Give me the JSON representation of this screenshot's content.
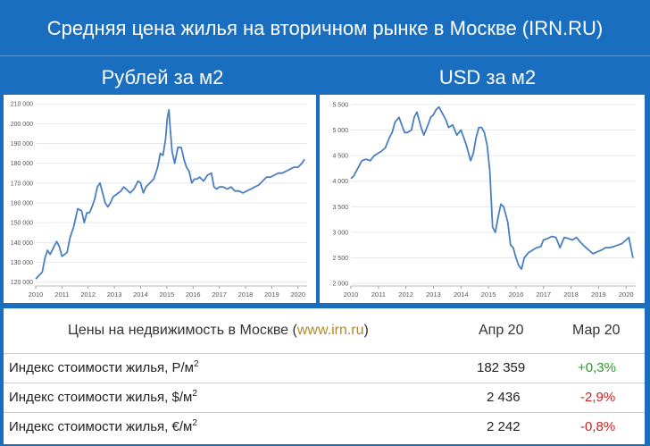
{
  "header": {
    "title": "Средняя цена жилья на вторичном рынке в Москве (IRN.RU)",
    "left_subtitle": "Рублей за м2",
    "right_subtitle": "USD за м2"
  },
  "chart_data": [
    {
      "type": "line",
      "title": "Рублей за м2",
      "xlim": [
        2010,
        2020.35
      ],
      "ylim": [
        118000,
        211000
      ],
      "x_ticks": [
        "2010",
        "2011",
        "2012",
        "2013",
        "2014",
        "2015",
        "2016",
        "2017",
        "2018",
        "2019",
        "2020"
      ],
      "y_ticks": [
        "120 000",
        "130 000",
        "140 000",
        "150 000",
        "160 000",
        "170 000",
        "180 000",
        "190 000",
        "200 000",
        "210 000"
      ],
      "color": "#4a7fc1",
      "series": [
        {
          "x": [
            2010.0,
            2010.1,
            2010.25,
            2010.35,
            2010.45,
            2010.55,
            2010.7,
            2010.8,
            2010.9,
            2011.0,
            2011.1,
            2011.2,
            2011.3,
            2011.45,
            2011.6,
            2011.75,
            2011.85,
            2011.95,
            2012.05,
            2012.15,
            2012.25,
            2012.35,
            2012.45,
            2012.55,
            2012.65,
            2012.75,
            2012.85,
            2012.95,
            2013.05,
            2013.15,
            2013.25,
            2013.35,
            2013.45,
            2013.6,
            2013.75,
            2013.9,
            2014.0,
            2014.1,
            2014.2,
            2014.35,
            2014.5,
            2014.65,
            2014.75,
            2014.85,
            2014.95,
            2015.02,
            2015.08,
            2015.12,
            2015.2,
            2015.3,
            2015.42,
            2015.55,
            2015.65,
            2015.75,
            2015.85,
            2015.95,
            2016.05,
            2016.15,
            2016.25,
            2016.4,
            2016.55,
            2016.7,
            2016.8,
            2016.9,
            2017.0,
            2017.15,
            2017.3,
            2017.45,
            2017.6,
            2017.75,
            2017.9,
            2018.05,
            2018.2,
            2018.35,
            2018.5,
            2018.65,
            2018.8,
            2018.95,
            2019.1,
            2019.25,
            2019.4,
            2019.55,
            2019.7,
            2019.85,
            2020.0,
            2020.15,
            2020.25
          ],
          "y": [
            121500,
            123000,
            125000,
            132000,
            136000,
            134000,
            138000,
            140500,
            138000,
            133000,
            134000,
            135000,
            142000,
            148000,
            157000,
            156000,
            150000,
            155000,
            155000,
            158000,
            162000,
            168000,
            170000,
            165000,
            160000,
            158000,
            160000,
            163000,
            164000,
            165000,
            166000,
            168000,
            167000,
            165000,
            167000,
            171000,
            170000,
            165000,
            168000,
            170000,
            172000,
            178000,
            185000,
            184000,
            192000,
            203000,
            207000,
            199000,
            186000,
            180000,
            188000,
            188000,
            182000,
            178000,
            176000,
            170000,
            172000,
            172000,
            173000,
            171000,
            174000,
            175000,
            168000,
            167000,
            168000,
            168000,
            167000,
            168000,
            166000,
            166000,
            165000,
            166000,
            167000,
            168000,
            169000,
            171000,
            173000,
            173000,
            174000,
            175000,
            175000,
            176000,
            177000,
            178000,
            178000,
            180000,
            182000
          ]
        }
      ]
    },
    {
      "type": "line",
      "title": "USD за м2",
      "xlim": [
        2010,
        2020.35
      ],
      "ylim": [
        1950,
        5550
      ],
      "x_ticks": [
        "2010",
        "2011",
        "2012",
        "2013",
        "2014",
        "2015",
        "2016",
        "2017",
        "2018",
        "2019",
        "2020"
      ],
      "y_ticks": [
        "2 000",
        "2 500",
        "3 000",
        "3 500",
        "4 000",
        "4 500",
        "5 000",
        "5 500"
      ],
      "color": "#4a7fc1",
      "series": [
        {
          "x": [
            2010.0,
            2010.1,
            2010.25,
            2010.4,
            2010.55,
            2010.7,
            2010.85,
            2011.0,
            2011.1,
            2011.25,
            2011.4,
            2011.5,
            2011.6,
            2011.75,
            2011.85,
            2011.95,
            2012.05,
            2012.2,
            2012.3,
            2012.4,
            2012.55,
            2012.65,
            2012.8,
            2012.9,
            2013.0,
            2013.1,
            2013.2,
            2013.3,
            2013.45,
            2013.55,
            2013.7,
            2013.85,
            2014.0,
            2014.1,
            2014.2,
            2014.35,
            2014.45,
            2014.55,
            2014.65,
            2014.75,
            2014.85,
            2014.95,
            2015.05,
            2015.15,
            2015.25,
            2015.35,
            2015.45,
            2015.55,
            2015.7,
            2015.8,
            2015.9,
            2016.0,
            2016.1,
            2016.2,
            2016.3,
            2016.45,
            2016.6,
            2016.75,
            2016.9,
            2017.0,
            2017.15,
            2017.3,
            2017.45,
            2017.6,
            2017.75,
            2017.9,
            2018.05,
            2018.2,
            2018.35,
            2018.5,
            2018.65,
            2018.8,
            2018.95,
            2019.1,
            2019.25,
            2019.4,
            2019.55,
            2019.7,
            2019.85,
            2020.0,
            2020.1,
            2020.25
          ],
          "y": [
            4050,
            4100,
            4250,
            4400,
            4430,
            4400,
            4500,
            4550,
            4580,
            4650,
            4850,
            4950,
            5150,
            5250,
            5100,
            4950,
            4950,
            5000,
            5250,
            5350,
            5050,
            4900,
            5100,
            5250,
            5300,
            5400,
            5450,
            5350,
            5200,
            5050,
            5100,
            4900,
            5000,
            4850,
            4700,
            4400,
            4550,
            4850,
            5050,
            5050,
            4950,
            4700,
            4200,
            3100,
            3000,
            3300,
            3550,
            3500,
            3200,
            2750,
            2700,
            2500,
            2350,
            2280,
            2500,
            2600,
            2650,
            2700,
            2720,
            2850,
            2880,
            2920,
            2900,
            2700,
            2900,
            2880,
            2850,
            2900,
            2800,
            2720,
            2650,
            2580,
            2620,
            2650,
            2700,
            2700,
            2720,
            2750,
            2780,
            2850,
            2900,
            2500
          ]
        }
      ]
    }
  ],
  "table": {
    "header": {
      "label_text": "Цены на недвижимость в Москве (",
      "label_link": "www.irn.ru",
      "label_end": ")",
      "col1": "Апр 20",
      "col2": "Мар 20"
    },
    "rows": [
      {
        "label": "Индекс стоимости жилья, Р/м",
        "sup": "2",
        "value": "182 359",
        "change": "+0,3%",
        "trend": "positive"
      },
      {
        "label": "Индекс стоимости жилья, $/м",
        "sup": "2",
        "value": "2 436",
        "change": "-2,9%",
        "trend": "negative"
      },
      {
        "label": "Индекс стоимости жилья, €/м",
        "sup": "2",
        "value": "2 242",
        "change": "-0,8%",
        "trend": "negative"
      }
    ]
  }
}
